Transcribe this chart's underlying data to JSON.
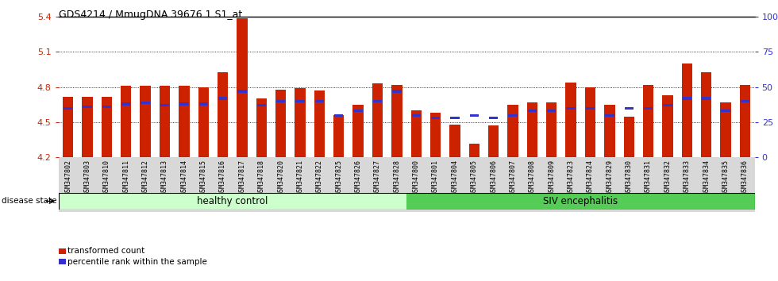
{
  "title": "GDS4214 / MmugDNA.39676.1.S1_at",
  "samples": [
    "GSM347802",
    "GSM347803",
    "GSM347810",
    "GSM347811",
    "GSM347812",
    "GSM347813",
    "GSM347814",
    "GSM347815",
    "GSM347816",
    "GSM347817",
    "GSM347818",
    "GSM347820",
    "GSM347821",
    "GSM347822",
    "GSM347825",
    "GSM347826",
    "GSM347827",
    "GSM347828",
    "GSM347800",
    "GSM347801",
    "GSM347804",
    "GSM347805",
    "GSM347806",
    "GSM347807",
    "GSM347808",
    "GSM347809",
    "GSM347823",
    "GSM347824",
    "GSM347829",
    "GSM347830",
    "GSM347831",
    "GSM347832",
    "GSM347833",
    "GSM347834",
    "GSM347835",
    "GSM347836"
  ],
  "bar_values": [
    4.72,
    4.72,
    4.72,
    4.81,
    4.81,
    4.81,
    4.81,
    4.8,
    4.93,
    5.39,
    4.7,
    4.78,
    4.79,
    4.77,
    4.56,
    4.65,
    4.83,
    4.82,
    4.6,
    4.58,
    4.48,
    4.32,
    4.47,
    4.65,
    4.67,
    4.67,
    4.84,
    4.8,
    4.65,
    4.55,
    4.82,
    4.73,
    5.0,
    4.93,
    4.67,
    4.82
  ],
  "percentile_values": [
    35,
    36,
    36,
    38,
    39,
    37,
    38,
    38,
    42,
    47,
    37,
    40,
    40,
    40,
    30,
    33,
    40,
    47,
    30,
    28,
    28,
    30,
    28,
    30,
    33,
    33,
    35,
    35,
    30,
    35,
    35,
    37,
    42,
    42,
    33,
    40
  ],
  "n_healthy": 18,
  "n_siv": 18,
  "ymin": 4.2,
  "ymax": 5.4,
  "yticks": [
    4.2,
    4.5,
    4.8,
    5.1,
    5.4
  ],
  "right_yticks": [
    0,
    25,
    50,
    75,
    100
  ],
  "bar_color": "#cc2200",
  "blue_color": "#3333cc",
  "healthy_color": "#ccffcc",
  "siv_color": "#55cc55",
  "label_transformed": "transformed count",
  "label_percentile": "percentile rank within the sample",
  "healthy_label": "healthy control",
  "siv_label": "SIV encephalitis",
  "disease_state_label": "disease state"
}
